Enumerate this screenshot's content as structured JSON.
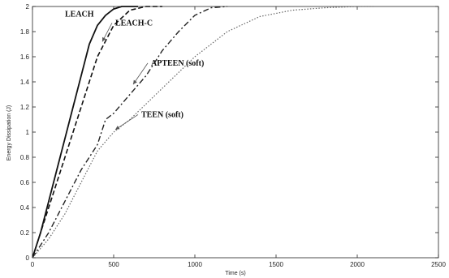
{
  "chart_data": {
    "type": "line",
    "title": "",
    "xlabel": "Time (s)",
    "ylabel": "Energy Dissipation (J)",
    "xlim": [
      0,
      2500
    ],
    "ylim": [
      0,
      2
    ],
    "xticks": [
      0,
      500,
      1000,
      1500,
      2000,
      2500
    ],
    "yticks": [
      0,
      0.2,
      0.4,
      0.6,
      0.8,
      1,
      1.2,
      1.4,
      1.6,
      1.8,
      2
    ],
    "grid": false,
    "legend": "none",
    "series": [
      {
        "name": "LEACH",
        "style": "solid",
        "x": [
          0,
          50,
          100,
          150,
          200,
          250,
          300,
          350,
          400,
          450,
          500,
          550,
          600,
          650
        ],
        "y": [
          0,
          0.2,
          0.45,
          0.7,
          0.95,
          1.2,
          1.45,
          1.7,
          1.85,
          1.93,
          1.98,
          2.0,
          2.0,
          2.0
        ]
      },
      {
        "name": "LEACH-C",
        "style": "dashed",
        "x": [
          0,
          50,
          100,
          200,
          300,
          400,
          500,
          600,
          700,
          800
        ],
        "y": [
          0,
          0.2,
          0.4,
          0.8,
          1.2,
          1.6,
          1.85,
          1.97,
          2.0,
          2.0
        ]
      },
      {
        "name": "APTEEN (soft)",
        "style": "dashdot",
        "x": [
          0,
          100,
          200,
          300,
          400,
          450,
          500,
          600,
          700,
          800,
          900,
          1000,
          1100,
          1200
        ],
        "y": [
          0,
          0.2,
          0.45,
          0.7,
          0.9,
          1.1,
          1.15,
          1.3,
          1.45,
          1.65,
          1.8,
          1.93,
          1.99,
          2.0
        ]
      },
      {
        "name": "TEEN (soft)",
        "style": "dotted",
        "x": [
          0,
          100,
          200,
          300,
          400,
          500,
          600,
          800,
          1000,
          1200,
          1400,
          1600,
          1800,
          2000,
          2100
        ],
        "y": [
          0,
          0.15,
          0.35,
          0.6,
          0.85,
          1.0,
          1.1,
          1.35,
          1.6,
          1.8,
          1.92,
          1.97,
          1.99,
          2.0,
          2.0
        ]
      }
    ],
    "annotations": [
      {
        "text": "LEACH",
        "series": "LEACH",
        "point": [
          340,
          1.66
        ],
        "label_pos": [
          200,
          1.92
        ],
        "arrow": false
      },
      {
        "text": "LEACH-C",
        "series": "LEACH-C",
        "point": [
          430,
          1.72
        ],
        "label_pos": [
          510,
          1.85
        ],
        "arrow": true
      },
      {
        "text": "APTEEN (soft)",
        "series": "APTEEN (soft)",
        "point": [
          620,
          1.38
        ],
        "label_pos": [
          730,
          1.53
        ],
        "arrow": true
      },
      {
        "text": "TEEN (soft)",
        "series": "TEEN (soft)",
        "point": [
          510,
          1.02
        ],
        "label_pos": [
          670,
          1.12
        ],
        "arrow": true
      }
    ]
  }
}
